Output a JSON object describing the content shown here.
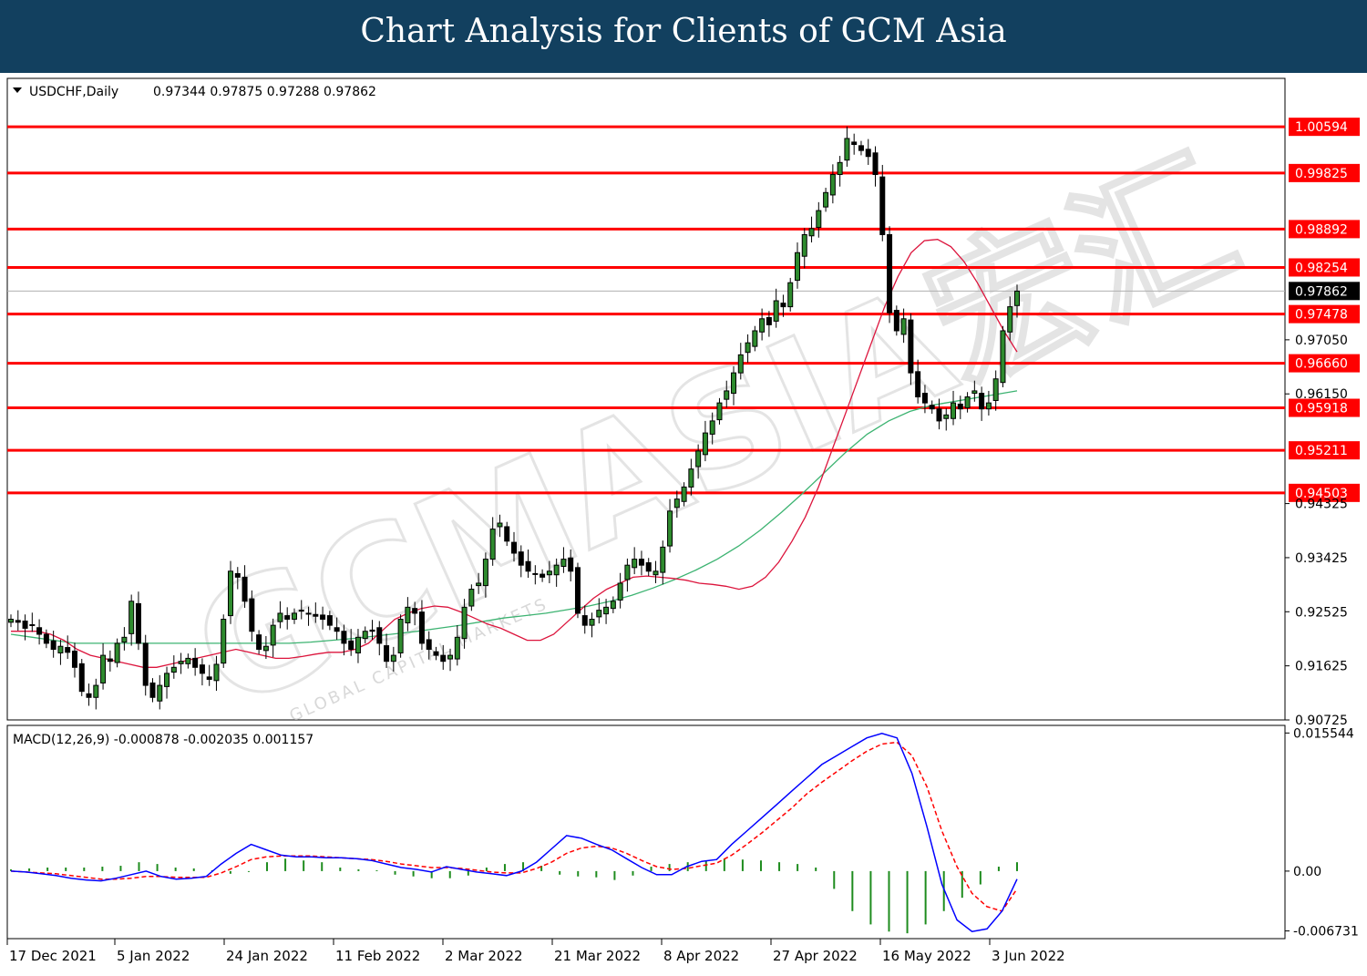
{
  "banner": {
    "title": "Chart Analysis for Clients of GCM Asia"
  },
  "watermark": {
    "text": "GCMASIA宏汇",
    "subtext": "GLOBAL CAPITAL MARKETS"
  },
  "chart_data": [
    {
      "type": "candlestick",
      "title": "USDCHF,Daily",
      "ohlc_header": "0.97344 0.97875 0.97288 0.97862",
      "last_close": 0.97862,
      "y_range": [
        0.90725,
        1.014
      ],
      "y_ticks": [
        "1.00594",
        "0.99825",
        "0.98892",
        "0.98254",
        "0.97862",
        "0.97478",
        "0.97050",
        "0.96660",
        "0.96150",
        "0.95918",
        "0.95211",
        "0.94503",
        "0.94325",
        "0.93425",
        "0.92525",
        "0.91625",
        "0.90725"
      ],
      "x_labels": [
        "17 Dec 2021",
        "5 Jan 2022",
        "24 Jan 2022",
        "11 Feb 2022",
        "2 Mar 2022",
        "21 Mar 2022",
        "8 Apr 2022",
        "27 Apr 2022",
        "16 May 2022",
        "3 Jun 2022"
      ],
      "horizontal_levels": [
        1.00594,
        0.99825,
        0.98892,
        0.98254,
        0.97478,
        0.9666,
        0.95918,
        0.95211,
        0.94503
      ],
      "level_labels": [
        "1.00594",
        "0.99825",
        "0.98892",
        "0.98254",
        "0.97478",
        "0.96660",
        "0.95918",
        "0.95211",
        "0.94503"
      ],
      "closes": [
        0.924,
        0.9235,
        0.9225,
        0.923,
        0.9215,
        0.92,
        0.919,
        0.9195,
        0.9185,
        0.916,
        0.912,
        0.911,
        0.913,
        0.918,
        0.917,
        0.92,
        0.921,
        0.927,
        0.92,
        0.913,
        0.911,
        0.913,
        0.915,
        0.916,
        0.917,
        0.9175,
        0.916,
        0.915,
        0.914,
        0.9165,
        0.924,
        0.932,
        0.931,
        0.927,
        0.922,
        0.919,
        0.9195,
        0.923,
        0.925,
        0.924,
        0.925,
        0.9255,
        0.925,
        0.9245,
        0.924,
        0.923,
        0.922,
        0.92,
        0.919,
        0.921,
        0.922,
        0.922,
        0.92,
        0.917,
        0.918,
        0.924,
        0.926,
        0.925,
        0.92,
        0.919,
        0.918,
        0.917,
        0.918,
        0.921,
        0.926,
        0.929,
        0.93,
        0.934,
        0.939,
        0.94,
        0.937,
        0.935,
        0.933,
        0.932,
        0.9315,
        0.931,
        0.932,
        0.933,
        0.934,
        0.932,
        0.925,
        0.923,
        0.924,
        0.9255,
        0.926,
        0.927,
        0.93,
        0.933,
        0.934,
        0.933,
        0.932,
        0.932,
        0.936,
        0.942,
        0.944,
        0.946,
        0.949,
        0.952,
        0.955,
        0.957,
        0.96,
        0.962,
        0.965,
        0.968,
        0.97,
        0.972,
        0.974,
        0.973,
        0.977,
        0.976,
        0.98,
        0.985,
        0.988,
        0.989,
        0.992,
        0.995,
        0.998,
        1.0,
        1.004,
        1.003,
        1.002,
        1.001,
        0.998,
        0.988,
        0.975,
        0.972,
        0.974,
        0.965,
        0.961,
        0.96,
        0.959,
        0.957,
        0.958,
        0.96,
        0.959,
        0.961,
        0.962,
        0.959,
        0.96,
        0.964,
        0.972,
        0.976,
        0.9786
      ],
      "ma_red": [
        0.922,
        0.922,
        0.922,
        0.9215,
        0.9205,
        0.919,
        0.918,
        0.9175,
        0.917,
        0.9165,
        0.916,
        0.916,
        0.9165,
        0.917,
        0.9175,
        0.918,
        0.9185,
        0.919,
        0.9185,
        0.918,
        0.9175,
        0.9175,
        0.9178,
        0.9182,
        0.9185,
        0.9185,
        0.919,
        0.92,
        0.922,
        0.924,
        0.925,
        0.9258,
        0.9262,
        0.926,
        0.9252,
        0.9242,
        0.9232,
        0.9225,
        0.9215,
        0.9205,
        0.9205,
        0.9215,
        0.9235,
        0.9255,
        0.9275,
        0.929,
        0.93,
        0.931,
        0.9312,
        0.931,
        0.9308,
        0.9305,
        0.93,
        0.9298,
        0.9295,
        0.929,
        0.9295,
        0.931,
        0.9335,
        0.937,
        0.941,
        0.946,
        0.952,
        0.958,
        0.964,
        0.97,
        0.976,
        0.981,
        0.985,
        0.987,
        0.9872,
        0.986,
        0.9835,
        0.98,
        0.976,
        0.972,
        0.9685
      ],
      "ma_red_start": 0,
      "ma_green": [
        0.9215,
        0.921,
        0.9205,
        0.92,
        0.92,
        0.92,
        0.92,
        0.92,
        0.92,
        0.92,
        0.92,
        0.92,
        0.92,
        0.92,
        0.9202,
        0.9205,
        0.9208,
        0.9212,
        0.9216,
        0.922,
        0.9225,
        0.923,
        0.9236,
        0.9242,
        0.9246,
        0.925,
        0.9256,
        0.9262,
        0.927,
        0.928,
        0.9292,
        0.9306,
        0.9322,
        0.934,
        0.9362,
        0.9388,
        0.9418,
        0.945,
        0.9484,
        0.9518,
        0.9548,
        0.957,
        0.9586,
        0.9596,
        0.9602,
        0.9608,
        0.9614,
        0.962
      ],
      "ma_green_start": 0
    },
    {
      "type": "macd",
      "title": "MACD(12,26,9) -0.000878 -0.002035 0.001157",
      "y_range": [
        -0.0076,
        0.0164
      ],
      "y_ticks": [
        "0.015544",
        "0.00",
        "-0.006731"
      ],
      "macd_values": [
        0.0,
        -0.0001,
        -0.0003,
        -0.0005,
        -0.0008,
        -0.001,
        -0.0011,
        -0.0008,
        -0.0004,
        0.0,
        -0.0006,
        -0.0009,
        -0.0008,
        -0.0006,
        0.0008,
        0.002,
        0.003,
        0.0024,
        0.0018,
        0.0016,
        0.0016,
        0.0015,
        0.0015,
        0.0014,
        0.0012,
        0.0008,
        0.0004,
        0.0002,
        -0.0001,
        0.0005,
        0.0002,
        -0.0001,
        -0.0003,
        -0.0005,
        0.0,
        0.001,
        0.0025,
        0.004,
        0.0037,
        0.003,
        0.0024,
        0.0014,
        0.0004,
        -0.0004,
        -0.0004,
        0.0005,
        0.0011,
        0.0013,
        0.003,
        0.0045,
        0.006,
        0.0075,
        0.009,
        0.0105,
        0.012,
        0.013,
        0.014,
        0.015,
        0.0155,
        0.015,
        0.011,
        0.005,
        -0.0015,
        -0.0055,
        -0.0068,
        -0.0065,
        -0.0045,
        -0.0009
      ],
      "signal_values": [
        0.0,
        -0.0001,
        -0.0002,
        -0.0003,
        -0.0005,
        -0.0007,
        -0.0009,
        -0.0009,
        -0.0008,
        -0.0006,
        -0.0006,
        -0.0007,
        -0.0007,
        -0.0007,
        -0.0002,
        0.0005,
        0.0013,
        0.0016,
        0.0017,
        0.0017,
        0.0017,
        0.0016,
        0.0015,
        0.0014,
        0.0013,
        0.0011,
        0.0008,
        0.0006,
        0.0004,
        0.0004,
        0.0003,
        0.0001,
        -0.0001,
        -0.0002,
        -0.0002,
        0.0003,
        0.001,
        0.002,
        0.0026,
        0.0028,
        0.0026,
        0.002,
        0.0012,
        0.0005,
        0.0002,
        0.0003,
        0.0006,
        0.0009,
        0.0018,
        0.003,
        0.0043,
        0.0057,
        0.0071,
        0.0087,
        0.01,
        0.0112,
        0.0124,
        0.0135,
        0.0143,
        0.0145,
        0.013,
        0.0095,
        0.0045,
        0.0005,
        -0.0025,
        -0.004,
        -0.0045,
        -0.002
      ],
      "hist_values": [
        0.0002,
        0.0003,
        0.0004,
        0.0004,
        0.0004,
        0.0005,
        0.0006,
        0.001,
        0.0008,
        0.0004,
        0.0003,
        0.0001,
        -0.0003,
        -0.0001,
        0.001,
        0.0014,
        0.0012,
        0.001,
        0.0004,
        0.0002,
        0.0001,
        -0.0004,
        -0.0006,
        -0.0008,
        -0.0008,
        -0.0005,
        0.0004,
        0.0008,
        0.001,
        0.0006,
        -0.0004,
        -0.0006,
        -0.0007,
        -0.001,
        -0.0005,
        0.0005,
        0.0008,
        0.001,
        0.0012,
        0.0014,
        0.0013,
        0.0012,
        0.001,
        0.0008,
        0.0004,
        -0.002,
        -0.0045,
        -0.006,
        -0.0068,
        -0.007,
        -0.006,
        -0.0045,
        -0.003,
        -0.0015,
        0.0005,
        0.001
      ]
    }
  ]
}
